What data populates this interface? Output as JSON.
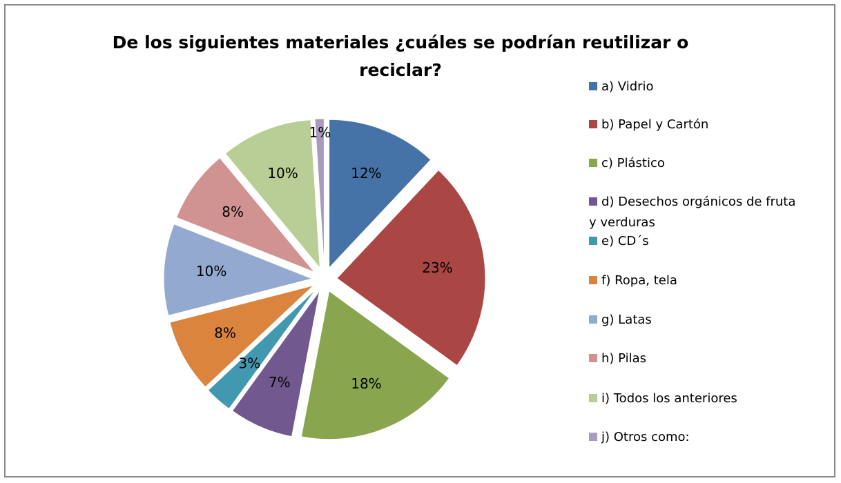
{
  "chart_data": {
    "type": "pie",
    "title": "De los siguientes materiales ¿cuáles se podrían reutilizar o reciclar?",
    "categories": [
      "a) Vidrio",
      "b) Papel y Cartón",
      "c) Plástico",
      "d) Desechos orgánicos de fruta y verduras",
      "e) CD´s",
      "f) Ropa, tela",
      "g) Latas",
      "h) Pilas",
      "i) Todos los anteriores",
      "j) Otros como:"
    ],
    "values": [
      12,
      23,
      18,
      7,
      3,
      8,
      10,
      8,
      10,
      1
    ],
    "value_labels": [
      "12%",
      "23%",
      "18%",
      "7%",
      "3%",
      "8%",
      "10%",
      "8%",
      "10%",
      "1%"
    ],
    "colors": [
      "#4572a7",
      "#aa4643",
      "#89a54e",
      "#71588f",
      "#4198af",
      "#db843d",
      "#93a9cf",
      "#d19392",
      "#b9cd96",
      "#a99bbd"
    ],
    "legend": "right"
  }
}
